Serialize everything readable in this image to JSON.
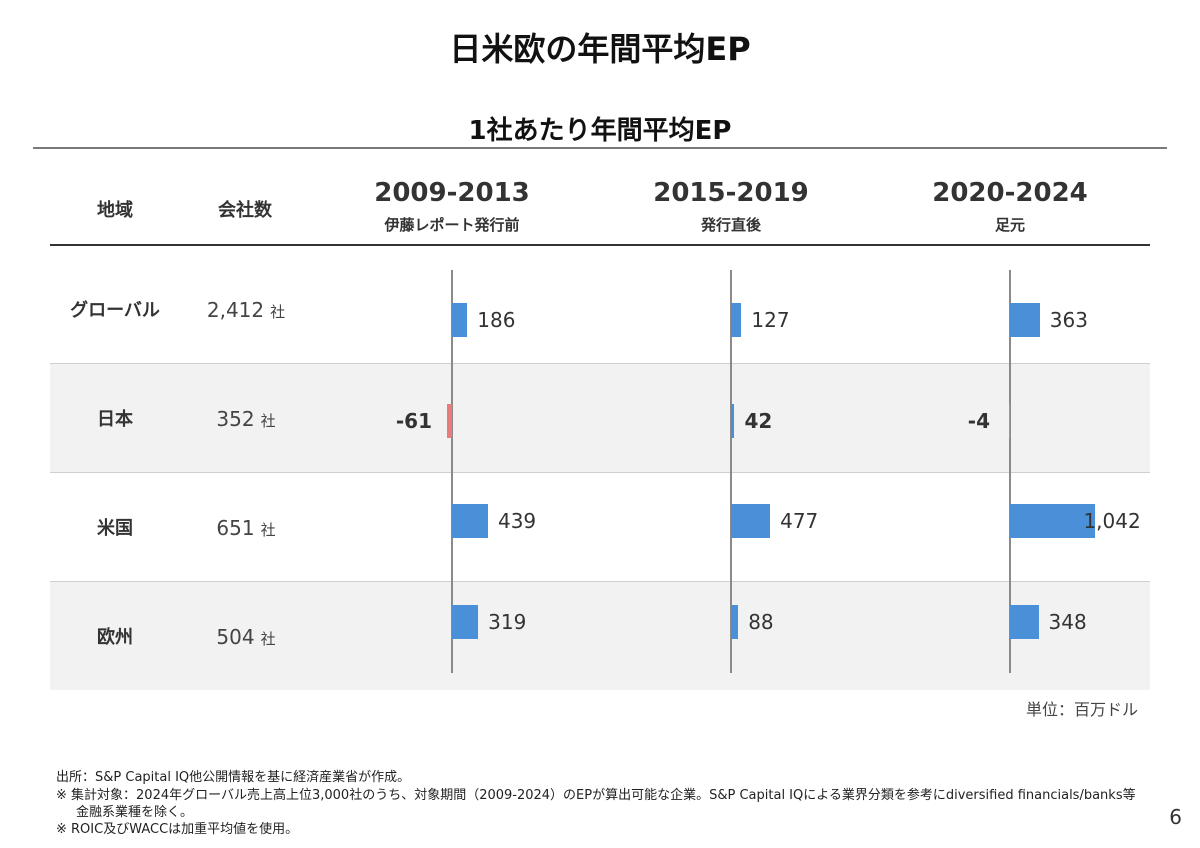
{
  "title": "日米欧の年間平均EP",
  "subtitle": "1社あたり年間平均EP",
  "headers": {
    "region": "地域",
    "company_count": "会社数"
  },
  "company_unit": "社",
  "unit_note": "単位：百万ドル",
  "footnotes": [
    "出所：S&P Capital IQ他公開情報を基に経済産業省が作成。",
    "※ 集計対象：2024年グローバル売上高上位3,000社のうち、対象期間（2009-2024）のEPが算出可能な企業。S&P Capital IQによる業界分類を参考にdiversified financials/banks等",
    "金融系業種を除く。",
    "※ ROIC及びWACCは加重平均値を使用。"
  ],
  "page_number": "6",
  "colors": {
    "positive": "#4a90d9",
    "negative": "#e97b7b",
    "highlight_row": "#f2f2f2"
  },
  "chart_data": {
    "type": "bar",
    "orientation": "horizontal",
    "unit": "百万ドル",
    "regions": [
      {
        "name": "グローバル",
        "count": "2,412"
      },
      {
        "name": "日本",
        "count": "352"
      },
      {
        "name": "米国",
        "count": "651"
      },
      {
        "name": "欧州",
        "count": "504"
      }
    ],
    "series": [
      {
        "name": "2009-2013",
        "note": "伊藤レポート発行前",
        "values": [
          186,
          -61,
          439,
          319
        ],
        "labels": [
          "186",
          "-61",
          "439",
          "319"
        ]
      },
      {
        "name": "2015-2019",
        "note": "発行直後",
        "values": [
          127,
          42,
          477,
          88
        ],
        "labels": [
          "127",
          "42",
          "477",
          "88"
        ]
      },
      {
        "name": "2020-2024",
        "note": "足元",
        "values": [
          363,
          -4,
          1042,
          348
        ],
        "labels": [
          "363",
          "-4",
          "1,042",
          "348"
        ]
      }
    ]
  }
}
